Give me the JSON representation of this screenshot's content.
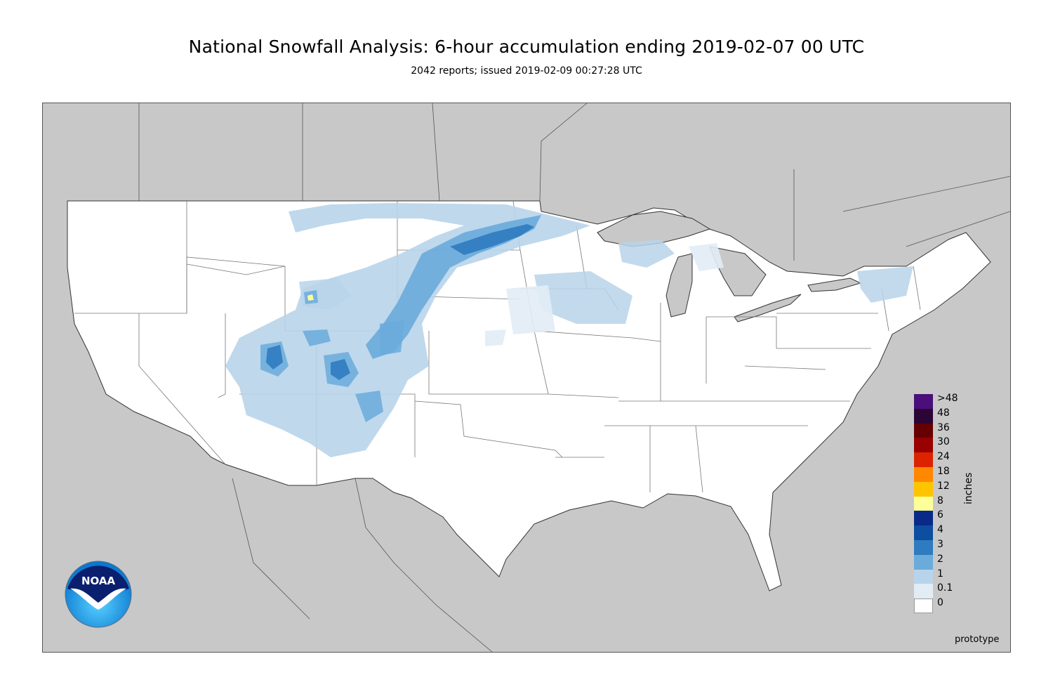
{
  "title": "National Snowfall Analysis: 6-hour accumulation ending 2019-02-07 00 UTC",
  "subtitle": "2042 reports; issued 2019-02-09 00:27:28 UTC",
  "legend": {
    "units": "inches",
    "entries": [
      {
        "label": ">48",
        "color": "#4a0f7a"
      },
      {
        "label": "48",
        "color": "#2a0535"
      },
      {
        "label": "36",
        "color": "#660000"
      },
      {
        "label": "30",
        "color": "#990000"
      },
      {
        "label": "24",
        "color": "#dd2200"
      },
      {
        "label": "18",
        "color": "#ff8800"
      },
      {
        "label": "12",
        "color": "#ffc400"
      },
      {
        "label": "8",
        "color": "#ffff99"
      },
      {
        "label": "6",
        "color": "#0a2a8a"
      },
      {
        "label": "4",
        "color": "#0d4ea0"
      },
      {
        "label": "3",
        "color": "#2e7bc0"
      },
      {
        "label": "2",
        "color": "#6aabdc"
      },
      {
        "label": "1",
        "color": "#b8d4ea"
      },
      {
        "label": "0.1",
        "color": "#e2ecf5"
      },
      {
        "label": "0",
        "color": "#ffffff"
      }
    ]
  },
  "logo_text": "NOAA",
  "prototype_label": "prototype",
  "colors": {
    "land_outside": "#c8c8c8",
    "border": "#333333"
  }
}
